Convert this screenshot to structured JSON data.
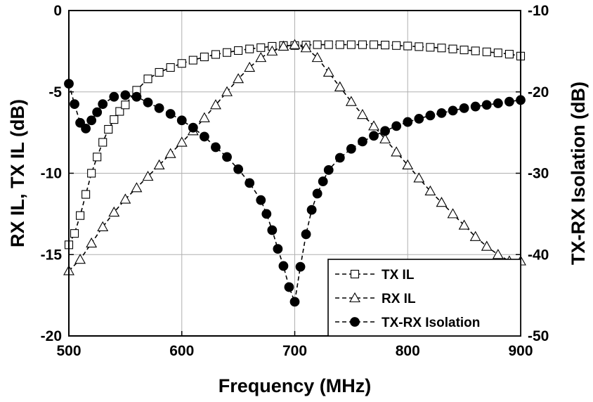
{
  "chart_data": {
    "type": "line",
    "xlabel": "Frequency (MHz)",
    "ylabel_left": "RX IL, TX IL (dB)",
    "ylabel_right": "TX-RX Isolation (dB)",
    "xlim": [
      500,
      900
    ],
    "ylim_left": [
      -20,
      0
    ],
    "ylim_right": [
      -50,
      -10
    ],
    "x_ticks": [
      "500",
      "600",
      "700",
      "800",
      "900"
    ],
    "y_left_ticks": [
      "0",
      "-5",
      "-10",
      "-15",
      "-20"
    ],
    "y_right_ticks": [
      "-10",
      "-20",
      "-30",
      "-40",
      "-50"
    ],
    "grid": true,
    "legend_position": "bottom-right",
    "series": [
      {
        "name": "TX IL",
        "axis": "left",
        "marker": "open-square",
        "x": [
          500,
          505,
          510,
          515,
          520,
          525,
          530,
          535,
          540,
          545,
          550,
          560,
          570,
          580,
          590,
          600,
          610,
          620,
          630,
          640,
          650,
          660,
          670,
          680,
          690,
          700,
          710,
          720,
          730,
          740,
          750,
          760,
          770,
          780,
          790,
          800,
          810,
          820,
          830,
          840,
          850,
          860,
          870,
          880,
          890,
          900
        ],
        "values": [
          -14.4,
          -13.7,
          -12.6,
          -11.3,
          -10.0,
          -9.0,
          -8.1,
          -7.3,
          -6.7,
          -6.2,
          -5.8,
          -4.9,
          -4.2,
          -3.8,
          -3.5,
          -3.25,
          -3.05,
          -2.85,
          -2.7,
          -2.58,
          -2.46,
          -2.36,
          -2.28,
          -2.2,
          -2.15,
          -2.15,
          -2.12,
          -2.1,
          -2.1,
          -2.1,
          -2.1,
          -2.1,
          -2.1,
          -2.12,
          -2.15,
          -2.18,
          -2.22,
          -2.26,
          -2.3,
          -2.36,
          -2.42,
          -2.48,
          -2.54,
          -2.6,
          -2.68,
          -2.8
        ]
      },
      {
        "name": "RX IL",
        "axis": "left",
        "marker": "open-triangle",
        "x": [
          500,
          510,
          520,
          530,
          540,
          550,
          560,
          570,
          580,
          590,
          600,
          610,
          620,
          630,
          640,
          650,
          660,
          670,
          680,
          690,
          700,
          710,
          720,
          730,
          740,
          750,
          760,
          770,
          780,
          790,
          800,
          810,
          820,
          830,
          840,
          850,
          860,
          870,
          880,
          890,
          900
        ],
        "values": [
          -16.0,
          -15.3,
          -14.3,
          -13.3,
          -12.4,
          -11.6,
          -10.9,
          -10.2,
          -9.5,
          -8.8,
          -8.1,
          -7.4,
          -6.6,
          -5.8,
          -5.0,
          -4.2,
          -3.5,
          -2.9,
          -2.5,
          -2.2,
          -2.1,
          -2.3,
          -2.9,
          -3.8,
          -4.7,
          -5.6,
          -6.4,
          -7.1,
          -7.9,
          -8.7,
          -9.5,
          -10.3,
          -11.1,
          -11.8,
          -12.5,
          -13.2,
          -13.9,
          -14.5,
          -15.0,
          -15.4,
          -15.4
        ]
      },
      {
        "name": "TX-RX Isolation",
        "axis": "right",
        "marker": "filled-circle",
        "x": [
          500,
          505,
          510,
          515,
          520,
          525,
          530,
          540,
          550,
          560,
          570,
          580,
          590,
          600,
          610,
          620,
          630,
          640,
          650,
          660,
          670,
          675,
          680,
          685,
          690,
          695,
          700,
          705,
          710,
          715,
          720,
          725,
          730,
          740,
          750,
          760,
          770,
          780,
          790,
          800,
          810,
          820,
          830,
          840,
          850,
          860,
          870,
          880,
          890,
          900
        ],
        "values": [
          -19.0,
          -21.5,
          -23.8,
          -24.5,
          -23.5,
          -22.5,
          -21.5,
          -20.6,
          -20.4,
          -20.6,
          -21.3,
          -22.0,
          -22.7,
          -23.5,
          -24.4,
          -25.5,
          -26.8,
          -28.0,
          -29.5,
          -31.2,
          -33.3,
          -35.0,
          -37.0,
          -39.3,
          -41.4,
          -44.0,
          -45.8,
          -41.5,
          -37.5,
          -34.5,
          -32.5,
          -31.0,
          -29.6,
          -28.1,
          -27.0,
          -26.1,
          -25.4,
          -24.8,
          -24.2,
          -23.7,
          -23.3,
          -22.9,
          -22.6,
          -22.3,
          -22.0,
          -21.8,
          -21.6,
          -21.4,
          -21.2,
          -21.0
        ]
      }
    ]
  }
}
